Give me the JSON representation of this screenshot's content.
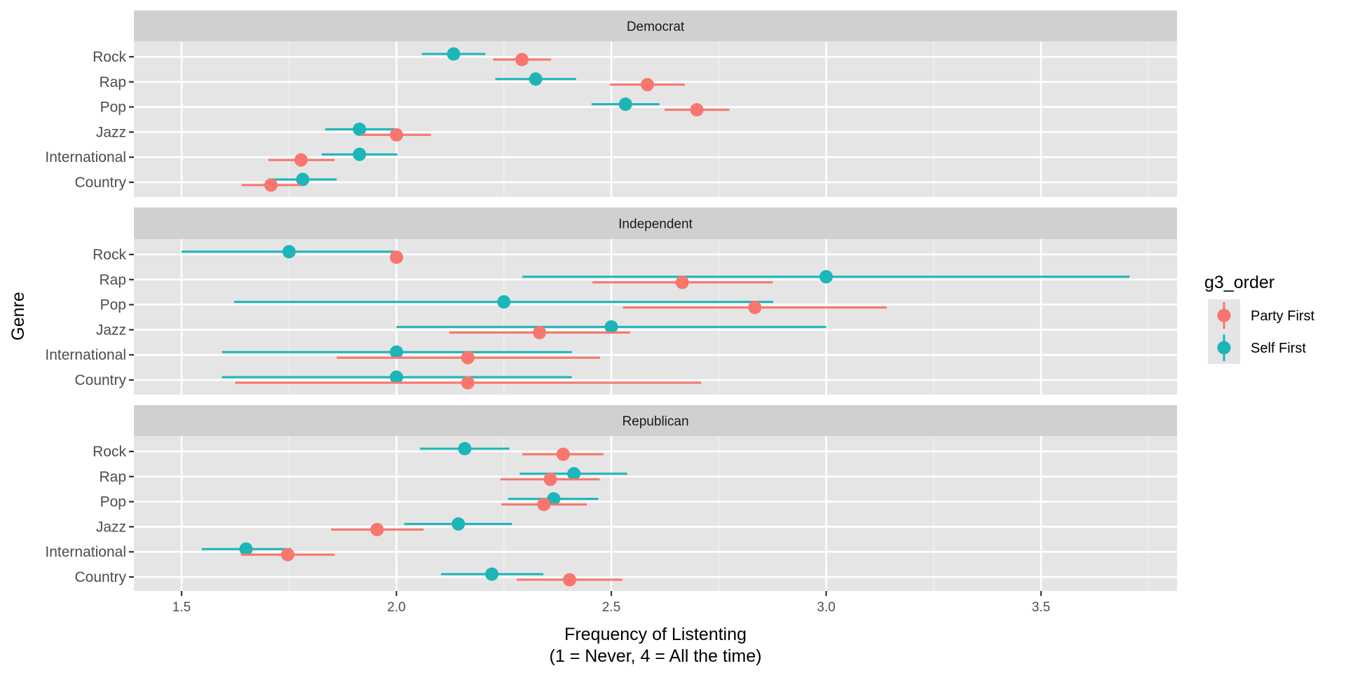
{
  "chart_data": {
    "type": "scatter",
    "subtype": "point-range (dodged), faceted",
    "xlabel": "Frequency of Listenting\n(1 = Never, 4 = All the time)",
    "xlabel_lines": [
      "Frequency of Listenting",
      "(1 = Never, 4 = All the time)"
    ],
    "ylabel": "Genre",
    "xlim": [
      1.39,
      3.815
    ],
    "x_ticks": [
      1.5,
      2.0,
      2.5,
      3.0,
      3.5
    ],
    "x_tick_labels": [
      "1.5",
      "2.0",
      "2.5",
      "3.0",
      "3.5"
    ],
    "x_minor_gridlines": [
      1.75,
      2.25,
      2.75,
      3.25,
      3.75
    ],
    "grid": true,
    "categories": [
      "Rock",
      "Rap",
      "Pop",
      "Jazz",
      "International",
      "Country"
    ],
    "legend": {
      "title": "g3_order",
      "position": "right",
      "entries": [
        {
          "name": "Party First",
          "color": "#F8766D"
        },
        {
          "name": "Self First",
          "color": "#00BFC4"
        }
      ]
    },
    "colors": {
      "Party First": "#F8766D",
      "Self First": "#1CB5B8"
    },
    "facets": [
      {
        "label": "Democrat",
        "series": [
          {
            "name": "Self First",
            "mean": [
              2.133,
              2.324,
              2.533,
              1.914,
              1.914,
              1.782
            ],
            "low": [
              2.059,
              2.23,
              2.454,
              1.834,
              1.826,
              1.702
            ],
            "high": [
              2.207,
              2.418,
              2.612,
              1.996,
              2.002,
              1.861
            ]
          },
          {
            "name": "Party First",
            "mean": [
              2.292,
              2.584,
              2.699,
              2.0,
              1.778,
              1.708
            ],
            "low": [
              2.225,
              2.497,
              2.624,
              1.919,
              1.702,
              1.64
            ],
            "high": [
              2.36,
              2.671,
              2.775,
              2.08,
              1.856,
              1.778
            ]
          }
        ]
      },
      {
        "label": "Independent",
        "series": [
          {
            "name": "Self First",
            "mean": [
              1.75,
              3.0,
              2.25,
              2.5,
              2.0,
              2.0
            ],
            "low": [
              1.5,
              2.293,
              1.622,
              2.0,
              1.594,
              1.594
            ],
            "high": [
              2.0,
              3.706,
              2.877,
              3.0,
              2.408,
              2.408
            ]
          },
          {
            "name": "Party First",
            "mean": [
              2.0,
              2.665,
              2.834,
              2.333,
              2.166,
              2.166
            ],
            "low": [
              2.0,
              2.456,
              2.527,
              2.123,
              1.861,
              1.625
            ],
            "high": [
              2.0,
              2.876,
              3.141,
              2.544,
              2.474,
              2.709
            ]
          }
        ]
      },
      {
        "label": "Republican",
        "series": [
          {
            "name": "Self First",
            "mean": [
              2.159,
              2.413,
              2.366,
              2.144,
              1.65,
              2.222
            ],
            "low": [
              2.055,
              2.287,
              2.26,
              2.018,
              1.547,
              2.104
            ],
            "high": [
              2.263,
              2.537,
              2.47,
              2.269,
              1.755,
              2.342
            ]
          },
          {
            "name": "Party First",
            "mean": [
              2.388,
              2.358,
              2.343,
              1.955,
              1.747,
              2.403
            ],
            "low": [
              2.293,
              2.242,
              2.244,
              1.848,
              1.638,
              2.28
            ],
            "high": [
              2.482,
              2.473,
              2.443,
              2.063,
              1.856,
              2.526
            ]
          }
        ]
      }
    ]
  }
}
